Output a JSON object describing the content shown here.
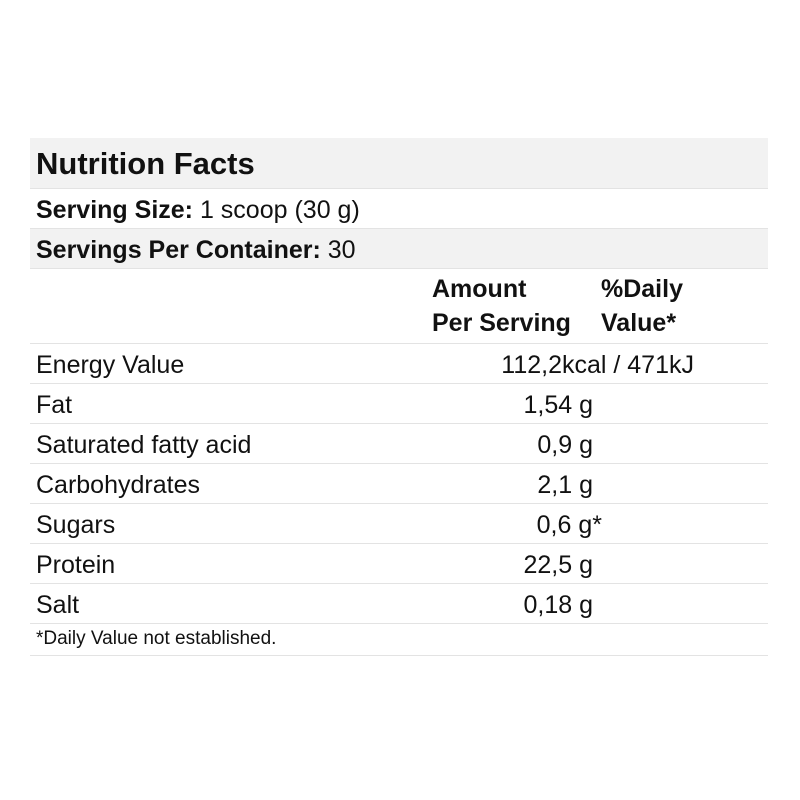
{
  "title": "Nutrition Facts",
  "serving_size": {
    "label": "Serving Size:",
    "value": "1 scoop (30 g)"
  },
  "servings_per_container": {
    "label": "Servings Per Container:",
    "value": "30"
  },
  "columns": {
    "amount_line1": "Amount",
    "amount_line2": "Per Serving",
    "daily_line1": "%Daily",
    "daily_line2": "Value*"
  },
  "rows": [
    {
      "nutrient": "Energy Value",
      "amount": "112,2kcal / 471kJ"
    },
    {
      "nutrient": "Fat",
      "amount": "1,54 g"
    },
    {
      "nutrient": "Saturated fatty acid",
      "amount": "0,9 g"
    },
    {
      "nutrient": "Carbohydrates",
      "amount": "2,1 g"
    },
    {
      "nutrient": "Sugars",
      "amount": "0,6 g*"
    },
    {
      "nutrient": "Protein",
      "amount": "22,5 g"
    },
    {
      "nutrient": "Salt",
      "amount": "0,18 g"
    }
  ],
  "footnote": "*Daily Value not established."
}
